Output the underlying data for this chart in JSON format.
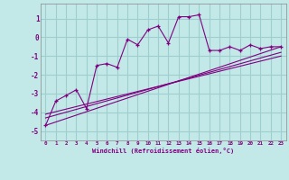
{
  "xlabel": "Windchill (Refroidissement éolien,°C)",
  "ylabel": "",
  "background_color": "#c2e8e8",
  "grid_color": "#9ecece",
  "line_color": "#800080",
  "xlim": [
    -0.5,
    23.5
  ],
  "ylim": [
    -5.5,
    1.8
  ],
  "yticks": [
    1,
    0,
    -1,
    -2,
    -3,
    -4,
    -5
  ],
  "xticks": [
    0,
    1,
    2,
    3,
    4,
    5,
    6,
    7,
    8,
    9,
    10,
    11,
    12,
    13,
    14,
    15,
    16,
    17,
    18,
    19,
    20,
    21,
    22,
    23
  ],
  "xtick_labels": [
    "0",
    "1",
    "2",
    "3",
    "4",
    "5",
    "6",
    "7",
    "8",
    "9",
    "10",
    "11",
    "12",
    "13",
    "14",
    "15",
    "16",
    "17",
    "18",
    "19",
    "20",
    "21",
    "22",
    "23"
  ],
  "series": [
    {
      "x": [
        0,
        1,
        2,
        3,
        4,
        5,
        6,
        7,
        8,
        9,
        10,
        11,
        12,
        13,
        14,
        15,
        16,
        17,
        18,
        19,
        20,
        21,
        22,
        23
      ],
      "y": [
        -4.7,
        -3.4,
        -3.1,
        -2.8,
        -3.8,
        -1.5,
        -1.4,
        -1.6,
        -0.1,
        -0.4,
        0.4,
        0.6,
        -0.3,
        1.1,
        1.1,
        1.2,
        -0.7,
        -0.7,
        -0.5,
        -0.7,
        -0.4,
        -0.6,
        -0.5,
        -0.5
      ],
      "marker": "+",
      "linestyle": "-"
    },
    {
      "x": [
        0,
        23
      ],
      "y": [
        -4.7,
        -0.5
      ],
      "marker": null,
      "linestyle": "-"
    },
    {
      "x": [
        0,
        23
      ],
      "y": [
        -4.3,
        -0.8
      ],
      "marker": null,
      "linestyle": "-"
    },
    {
      "x": [
        0,
        23
      ],
      "y": [
        -4.1,
        -1.0
      ],
      "marker": null,
      "linestyle": "-"
    }
  ]
}
